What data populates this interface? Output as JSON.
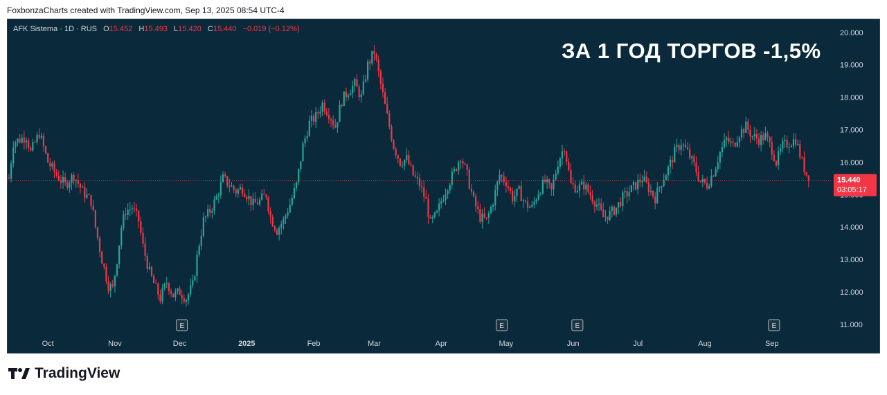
{
  "header": {
    "attribution": "FoxbonzaCharts created with TradingView.com, Sep 13, 2025 08:54 UTC-4"
  },
  "legend": {
    "symbol": "AFK Sistema · 1D · RUS",
    "o_label": "O",
    "o_value": "15.452",
    "h_label": "H",
    "h_value": "15.493",
    "l_label": "L",
    "l_value": "15.420",
    "c_label": "C",
    "c_value": "15.440",
    "change": "−0.019 (−0.12%)"
  },
  "headline": "ЗА 1 ГОД ТОРГОВ -1,5%",
  "footer": {
    "brand": "TradingView",
    "logo_icon": "tradingview-logo-icon"
  },
  "colors": {
    "background": "#0a2a3c",
    "up": "#26a69a",
    "down": "#f23645",
    "axis_text": "#d1d4dc"
  },
  "chart_data": {
    "type": "candlestick",
    "symbol": "AFK Sistema",
    "interval": "1D",
    "ylim": [
      10.7,
      20.4
    ],
    "yticks": [
      "20.000",
      "19.000",
      "18.000",
      "17.000",
      "16.000",
      "15.000",
      "14.000",
      "13.000",
      "12.000",
      "11.000"
    ],
    "ytick_values": [
      20,
      19,
      18,
      17,
      16,
      15,
      14,
      13,
      12,
      11
    ],
    "xticks": [
      "Oct",
      "Nov",
      "Dec",
      "2025",
      "Feb",
      "Mar",
      "Apr",
      "May",
      "Jun",
      "Jul",
      "Aug",
      "Sep"
    ],
    "xtick_days": [
      18,
      49,
      79,
      110,
      141,
      169,
      200,
      230,
      261,
      291,
      322,
      353
    ],
    "x_range_days": [
      0,
      380
    ],
    "earnings_markers": {
      "label": "E",
      "days": [
        80,
        228,
        263,
        354
      ]
    },
    "last_price": {
      "value": 15.44,
      "label": "15.440",
      "countdown": "03:05:17"
    },
    "trend_points": [
      [
        0,
        15.5
      ],
      [
        2,
        16.6
      ],
      [
        8,
        16.8
      ],
      [
        10,
        16.3
      ],
      [
        14,
        16.9
      ],
      [
        18,
        16.0
      ],
      [
        22,
        15.6
      ],
      [
        26,
        15.3
      ],
      [
        30,
        15.6
      ],
      [
        34,
        15.1
      ],
      [
        38,
        14.8
      ],
      [
        40,
        14.0
      ],
      [
        43,
        13.0
      ],
      [
        46,
        12.2
      ],
      [
        48,
        12.1
      ],
      [
        50,
        13.0
      ],
      [
        52,
        14.0
      ],
      [
        54,
        14.5
      ],
      [
        57,
        14.6
      ],
      [
        60,
        14.2
      ],
      [
        62,
        13.4
      ],
      [
        65,
        12.6
      ],
      [
        68,
        12.1
      ],
      [
        70,
        11.8
      ],
      [
        73,
        12.3
      ],
      [
        76,
        11.9
      ],
      [
        79,
        12.0
      ],
      [
        82,
        11.8
      ],
      [
        85,
        12.2
      ],
      [
        88,
        13.5
      ],
      [
        90,
        14.2
      ],
      [
        93,
        14.5
      ],
      [
        96,
        14.9
      ],
      [
        99,
        15.5
      ],
      [
        102,
        15.3
      ],
      [
        105,
        15.1
      ],
      [
        108,
        15.2
      ],
      [
        110,
        15.0
      ],
      [
        113,
        14.7
      ],
      [
        116,
        14.8
      ],
      [
        119,
        15.0
      ],
      [
        121,
        14.3
      ],
      [
        124,
        13.9
      ],
      [
        127,
        14.2
      ],
      [
        130,
        14.7
      ],
      [
        133,
        15.3
      ],
      [
        136,
        16.5
      ],
      [
        139,
        17.2
      ],
      [
        142,
        17.4
      ],
      [
        145,
        17.8
      ],
      [
        148,
        17.5
      ],
      [
        151,
        17.1
      ],
      [
        154,
        17.9
      ],
      [
        157,
        18.2
      ],
      [
        160,
        18.4
      ],
      [
        163,
        18.0
      ],
      [
        166,
        19.0
      ],
      [
        169,
        19.4
      ],
      [
        172,
        18.4
      ],
      [
        175,
        17.4
      ],
      [
        178,
        16.5
      ],
      [
        181,
        16.0
      ],
      [
        184,
        16.1
      ],
      [
        187,
        15.6
      ],
      [
        190,
        15.3
      ],
      [
        193,
        14.8
      ],
      [
        195,
        14.1
      ],
      [
        198,
        14.4
      ],
      [
        200,
        14.8
      ],
      [
        203,
        15.3
      ],
      [
        206,
        15.7
      ],
      [
        209,
        16.2
      ],
      [
        212,
        15.6
      ],
      [
        215,
        14.8
      ],
      [
        218,
        14.3
      ],
      [
        221,
        14.2
      ],
      [
        224,
        14.8
      ],
      [
        227,
        15.6
      ],
      [
        230,
        15.4
      ],
      [
        233,
        14.9
      ],
      [
        236,
        15.1
      ],
      [
        239,
        14.7
      ],
      [
        242,
        14.6
      ],
      [
        245,
        15.1
      ],
      [
        248,
        15.4
      ],
      [
        251,
        15.1
      ],
      [
        254,
        16.0
      ],
      [
        257,
        16.5
      ],
      [
        260,
        15.3
      ],
      [
        263,
        15.2
      ],
      [
        266,
        15.3
      ],
      [
        269,
        15.0
      ],
      [
        272,
        14.7
      ],
      [
        275,
        14.3
      ],
      [
        278,
        14.4
      ],
      [
        281,
        14.6
      ],
      [
        284,
        14.9
      ],
      [
        287,
        15.1
      ],
      [
        290,
        15.3
      ],
      [
        293,
        15.5
      ],
      [
        296,
        15.2
      ],
      [
        299,
        14.9
      ],
      [
        302,
        15.4
      ],
      [
        305,
        15.8
      ],
      [
        308,
        16.3
      ],
      [
        311,
        16.6
      ],
      [
        314,
        16.3
      ],
      [
        317,
        15.9
      ],
      [
        320,
        15.4
      ],
      [
        323,
        15.3
      ],
      [
        326,
        15.7
      ],
      [
        329,
        16.3
      ],
      [
        332,
        16.7
      ],
      [
        335,
        16.5
      ],
      [
        338,
        16.9
      ],
      [
        341,
        17.1
      ],
      [
        344,
        16.8
      ],
      [
        347,
        16.7
      ],
      [
        350,
        16.8
      ],
      [
        353,
        16.4
      ],
      [
        355,
        16.0
      ],
      [
        358,
        16.5
      ],
      [
        361,
        16.6
      ],
      [
        364,
        16.7
      ],
      [
        367,
        16.0
      ],
      [
        370,
        15.44
      ]
    ]
  }
}
